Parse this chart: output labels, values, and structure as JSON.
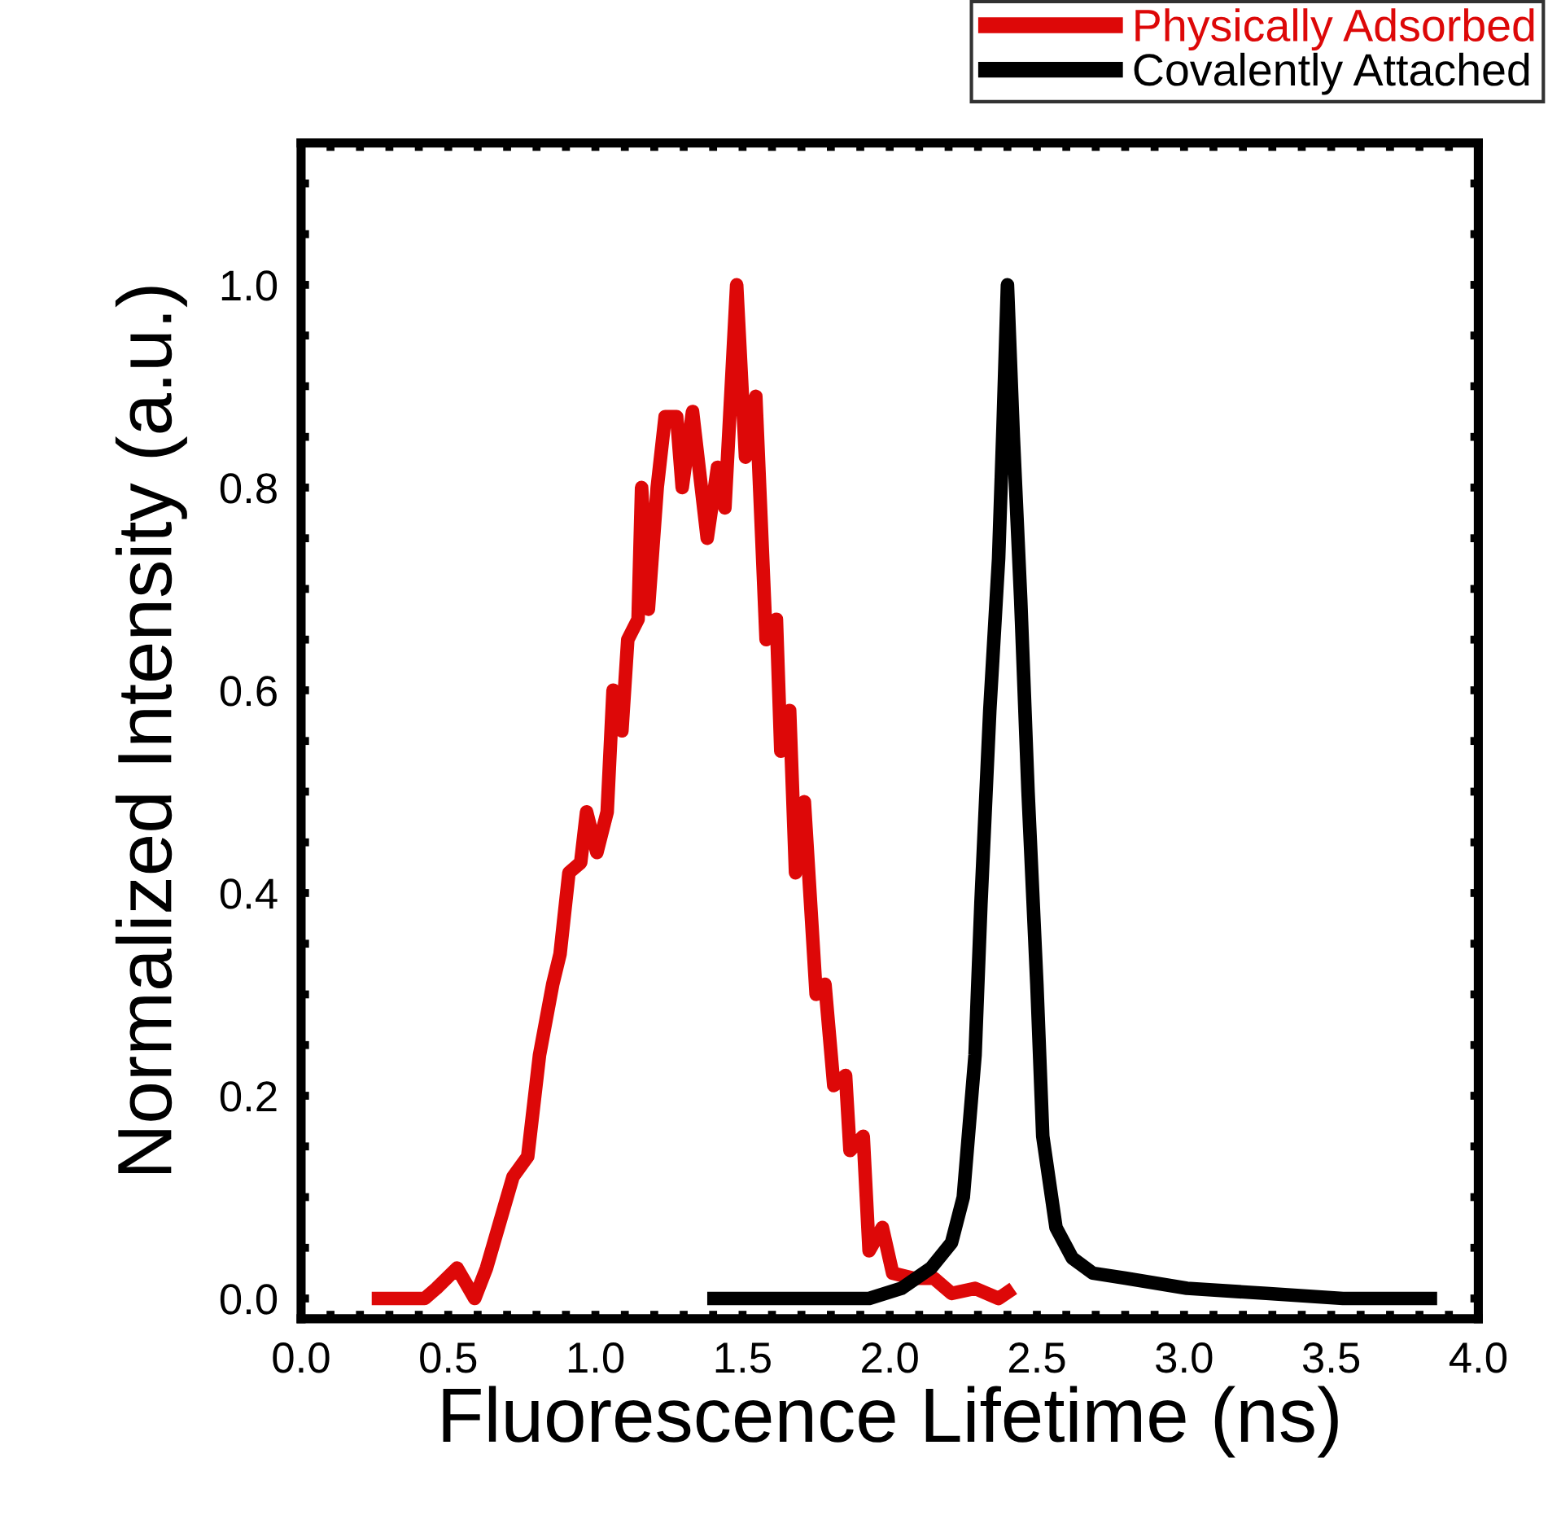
{
  "chart_data": {
    "type": "line",
    "xlabel": "Fluorescence Lifetime (ns)",
    "ylabel": "Normalized Intensity (a.u.)",
    "xlim": [
      0,
      4
    ],
    "ylim": [
      -0.02,
      1.14
    ],
    "xticks": [
      {
        "value": 0,
        "label": "0.0"
      },
      {
        "value": 0.1,
        "label": null
      },
      {
        "value": 0.2,
        "label": null
      },
      {
        "value": 0.3,
        "label": null
      },
      {
        "value": 0.4,
        "label": null
      },
      {
        "value": 0.5,
        "label": "0.5"
      },
      {
        "value": 0.6,
        "label": null
      },
      {
        "value": 0.7,
        "label": null
      },
      {
        "value": 0.8,
        "label": null
      },
      {
        "value": 0.9,
        "label": null
      },
      {
        "value": 1.0,
        "label": "1.0"
      },
      {
        "value": 1.1,
        "label": null
      },
      {
        "value": 1.2,
        "label": null
      },
      {
        "value": 1.3,
        "label": null
      },
      {
        "value": 1.4,
        "label": null
      },
      {
        "value": 1.5,
        "label": "1.5"
      },
      {
        "value": 1.6,
        "label": null
      },
      {
        "value": 1.7,
        "label": null
      },
      {
        "value": 1.8,
        "label": null
      },
      {
        "value": 1.9,
        "label": null
      },
      {
        "value": 2.0,
        "label": "2.0"
      },
      {
        "value": 2.1,
        "label": null
      },
      {
        "value": 2.2,
        "label": null
      },
      {
        "value": 2.3,
        "label": null
      },
      {
        "value": 2.4,
        "label": null
      },
      {
        "value": 2.5,
        "label": "2.5"
      },
      {
        "value": 2.6,
        "label": null
      },
      {
        "value": 2.7,
        "label": null
      },
      {
        "value": 2.8,
        "label": null
      },
      {
        "value": 2.9,
        "label": null
      },
      {
        "value": 3.0,
        "label": "3.0"
      },
      {
        "value": 3.1,
        "label": null
      },
      {
        "value": 3.2,
        "label": null
      },
      {
        "value": 3.3,
        "label": null
      },
      {
        "value": 3.4,
        "label": null
      },
      {
        "value": 3.5,
        "label": "3.5"
      },
      {
        "value": 3.6,
        "label": null
      },
      {
        "value": 3.7,
        "label": null
      },
      {
        "value": 3.8,
        "label": null
      },
      {
        "value": 3.9,
        "label": null
      },
      {
        "value": 4.0,
        "label": "4.0"
      }
    ],
    "yticks": [
      {
        "value": 0,
        "label": "0.0"
      },
      {
        "value": 0.05,
        "label": null
      },
      {
        "value": 0.1,
        "label": null
      },
      {
        "value": 0.15,
        "label": null
      },
      {
        "value": 0.2,
        "label": "0.2"
      },
      {
        "value": 0.25,
        "label": null
      },
      {
        "value": 0.3,
        "label": null
      },
      {
        "value": 0.35,
        "label": null
      },
      {
        "value": 0.4,
        "label": "0.4"
      },
      {
        "value": 0.45,
        "label": null
      },
      {
        "value": 0.5,
        "label": null
      },
      {
        "value": 0.55,
        "label": null
      },
      {
        "value": 0.6,
        "label": "0.6"
      },
      {
        "value": 0.65,
        "label": null
      },
      {
        "value": 0.7,
        "label": null
      },
      {
        "value": 0.75,
        "label": null
      },
      {
        "value": 0.8,
        "label": "0.8"
      },
      {
        "value": 0.85,
        "label": null
      },
      {
        "value": 0.9,
        "label": null
      },
      {
        "value": 0.95,
        "label": null
      },
      {
        "value": 1.0,
        "label": "1.0"
      },
      {
        "value": 1.05,
        "label": null
      },
      {
        "value": 1.1,
        "label": null
      }
    ],
    "grid": false,
    "legend": "top right",
    "marker": "none",
    "line_style": "solid",
    "series": [
      {
        "name": "Physically Adsorbed",
        "color": "#dd0808",
        "x": [
          0.24,
          0.42,
          0.46,
          0.53,
          0.59,
          0.63,
          0.68,
          0.72,
          0.77,
          0.81,
          0.855,
          0.88,
          0.91,
          0.95,
          0.97,
          1.005,
          1.04,
          1.06,
          1.09,
          1.11,
          1.145,
          1.157,
          1.18,
          1.21,
          1.237,
          1.276,
          1.295,
          1.33,
          1.38,
          1.415,
          1.44,
          1.48,
          1.51,
          1.545,
          1.58,
          1.615,
          1.63,
          1.66,
          1.68,
          1.71,
          1.75,
          1.78,
          1.81,
          1.85,
          1.865,
          1.91,
          1.93,
          1.975,
          2.01,
          2.08,
          2.15,
          2.21,
          2.29,
          2.37,
          2.42
        ],
        "values": [
          0.0,
          0.0,
          0.01,
          0.03,
          0.0,
          0.03,
          0.08,
          0.12,
          0.14,
          0.24,
          0.31,
          0.34,
          0.42,
          0.43,
          0.48,
          0.44,
          0.48,
          0.6,
          0.56,
          0.65,
          0.67,
          0.8,
          0.68,
          0.8,
          0.87,
          0.87,
          0.8,
          0.875,
          0.75,
          0.82,
          0.78,
          1.0,
          0.83,
          0.89,
          0.65,
          0.67,
          0.54,
          0.58,
          0.42,
          0.49,
          0.3,
          0.31,
          0.21,
          0.22,
          0.146,
          0.16,
          0.047,
          0.07,
          0.025,
          0.02,
          0.02,
          0.005,
          0.01,
          0.0,
          0.01
        ]
      },
      {
        "name": "Covalently Attached",
        "color": "#000000",
        "x": [
          1.38,
          1.69,
          1.93,
          2.04,
          2.14,
          2.21,
          2.25,
          2.29,
          2.31,
          2.34,
          2.37,
          2.385,
          2.4,
          2.42,
          2.445,
          2.47,
          2.5,
          2.52,
          2.565,
          2.62,
          2.69,
          2.8,
          3.01,
          3.28,
          3.54,
          3.86
        ],
        "values": [
          0.0,
          0.0,
          0.0,
          0.01,
          0.03,
          0.055,
          0.1,
          0.24,
          0.39,
          0.58,
          0.73,
          0.86,
          1.0,
          0.85,
          0.69,
          0.5,
          0.31,
          0.16,
          0.07,
          0.04,
          0.025,
          0.02,
          0.01,
          0.005,
          0.0,
          0.0
        ]
      }
    ]
  }
}
